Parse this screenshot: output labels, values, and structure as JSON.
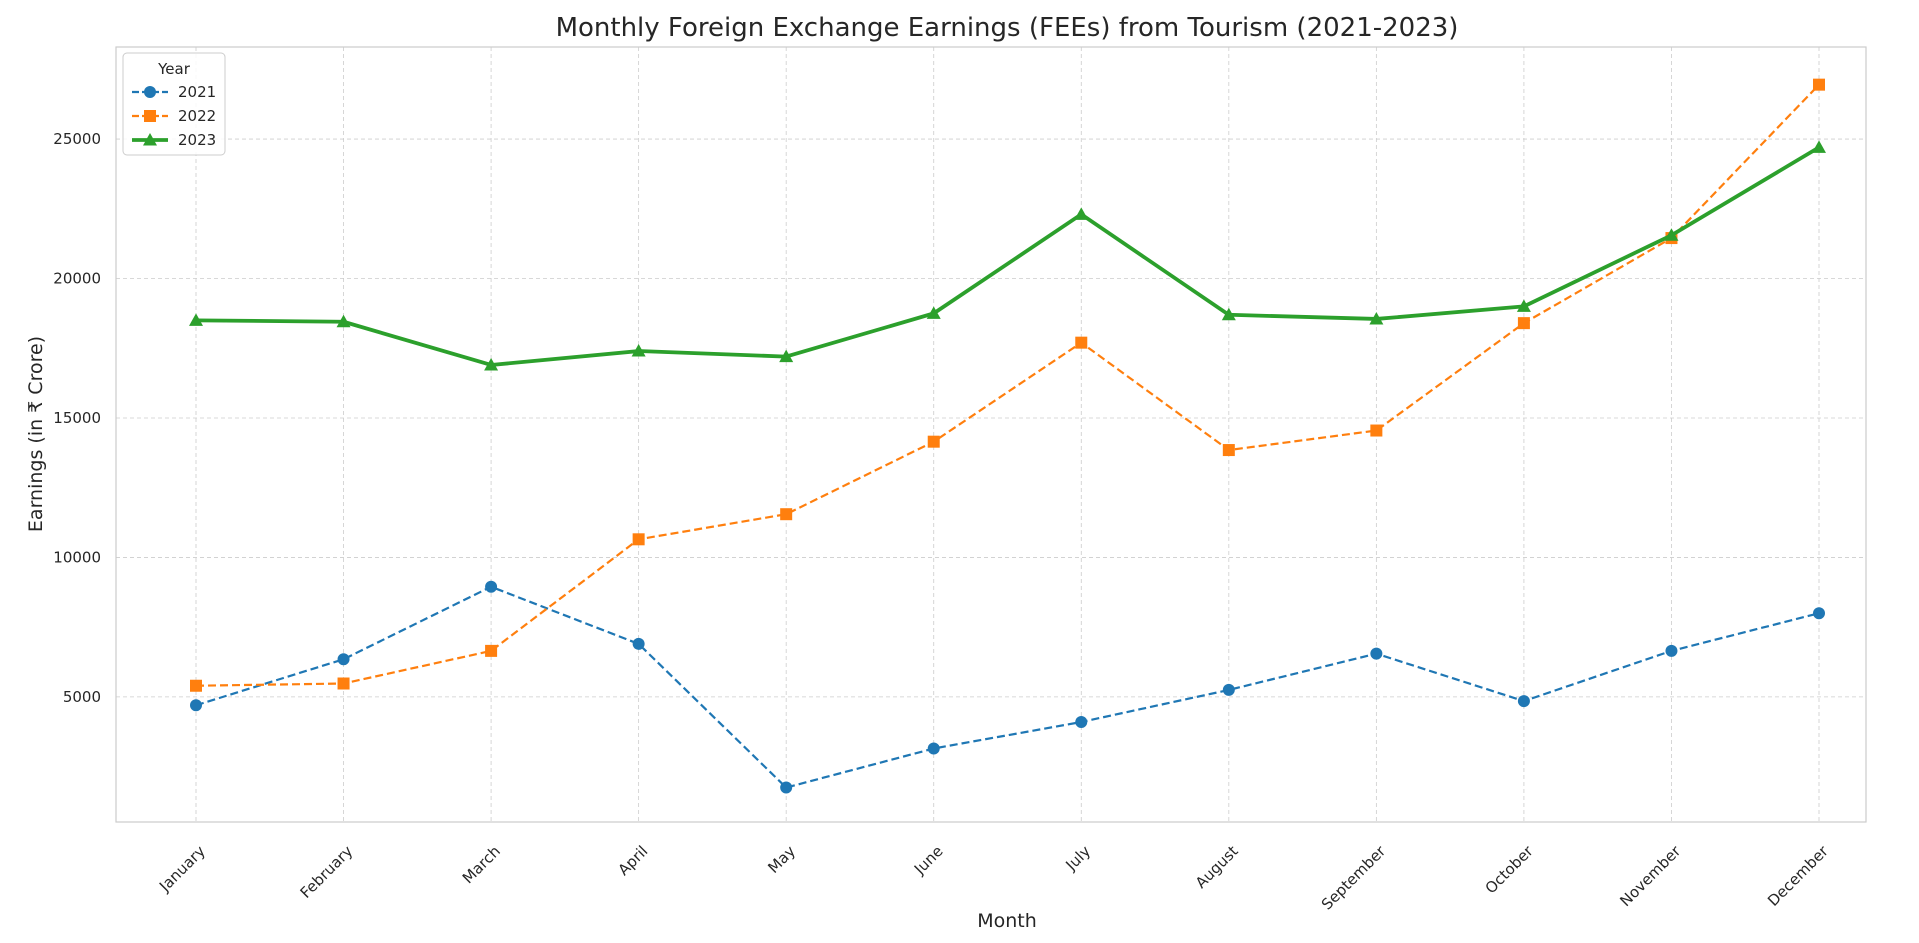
{
  "chart_data": {
    "type": "line",
    "title": "Monthly Foreign Exchange Earnings (FEEs) from Tourism (2021-2023)",
    "xlabel": "Month",
    "ylabel": "Earnings (in ₹ Crore)",
    "categories": [
      "January",
      "February",
      "March",
      "April",
      "May",
      "June",
      "July",
      "August",
      "September",
      "October",
      "November",
      "December"
    ],
    "yticks": [
      5000,
      10000,
      15000,
      20000,
      25000
    ],
    "ylim": [
      515,
      28300
    ],
    "grid": true,
    "legend": {
      "title": "Year",
      "position": "top-left"
    },
    "series": [
      {
        "name": "2021",
        "color": "#1f77b4",
        "marker": "circle",
        "line_style": "dashed",
        "values": [
          4700,
          6350,
          8950,
          6900,
          1750,
          3150,
          4100,
          5250,
          6550,
          4850,
          6650,
          8000
        ]
      },
      {
        "name": "2022",
        "color": "#ff7f0e",
        "marker": "square",
        "line_style": "dashed",
        "values": [
          5400,
          5480,
          6650,
          10650,
          11550,
          14150,
          17700,
          13850,
          14550,
          18400,
          21450,
          26950
        ]
      },
      {
        "name": "2023",
        "color": "#2ca02c",
        "marker": "triangle",
        "line_style": "solid",
        "values": [
          18500,
          18450,
          16900,
          17400,
          17200,
          18750,
          22300,
          18700,
          18550,
          19000,
          21550,
          24700
        ]
      }
    ]
  }
}
